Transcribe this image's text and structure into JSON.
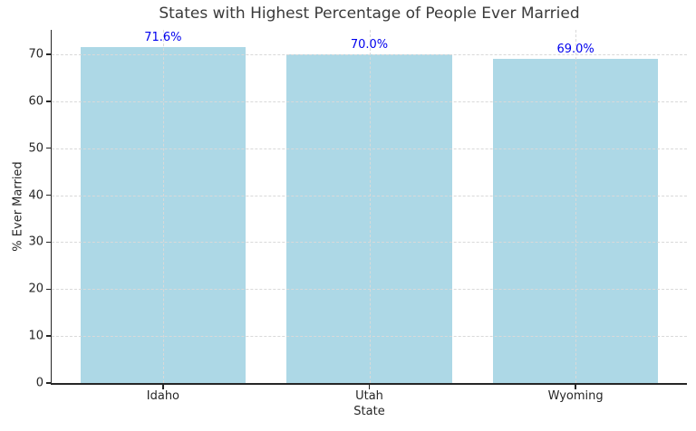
{
  "figure": {
    "background": "#ffffff"
  },
  "chart_data": {
    "type": "bar",
    "title": "States with Highest Percentage of People Ever Married",
    "xlabel": "State",
    "ylabel": "% Ever Married",
    "categories": [
      "Idaho",
      "Utah",
      "Wyoming"
    ],
    "values": [
      71.6,
      70.0,
      69.0
    ],
    "value_labels": [
      "71.6%",
      "70.0%",
      "69.0%"
    ],
    "yticks": [
      0,
      10,
      20,
      30,
      40,
      50,
      60,
      70
    ],
    "ylim": [
      0,
      75.2
    ],
    "grid": true,
    "grid_style": "dashed",
    "legend": false,
    "bar_color": "#ADD8E6",
    "value_label_color": "#0000EE",
    "axis_color": "#262626",
    "grid_color": "#d9d9d9",
    "title_color": "#3a3a3a"
  }
}
